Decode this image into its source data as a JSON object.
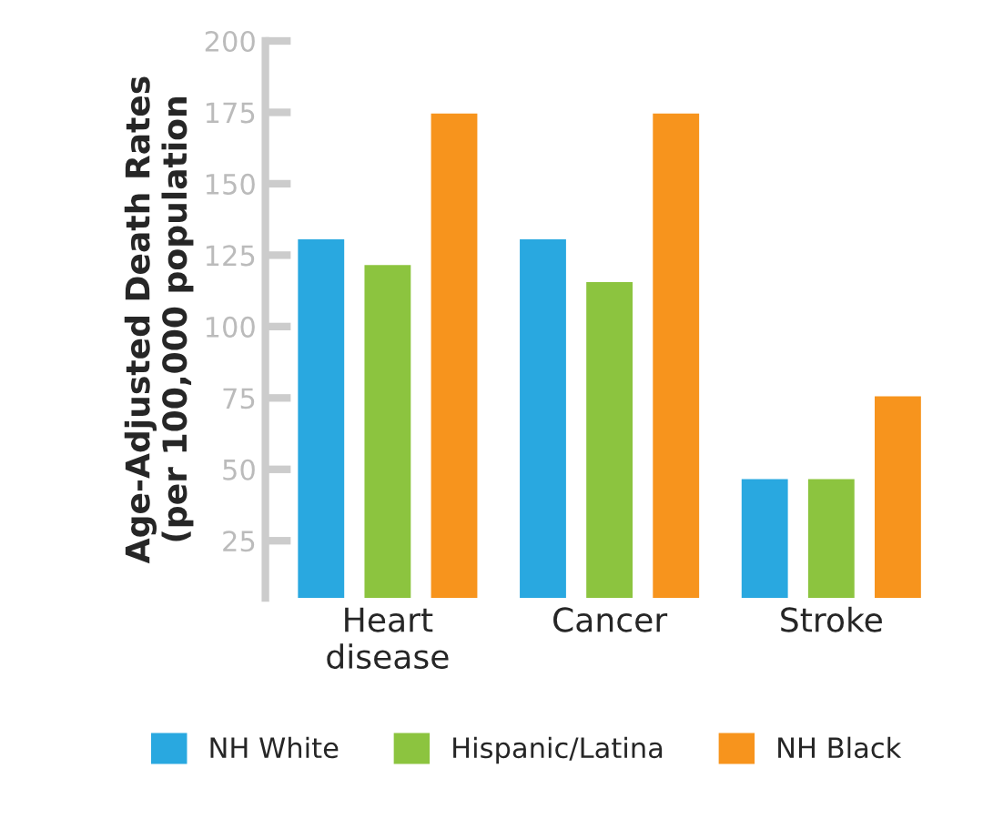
{
  "chart_data": {
    "type": "bar",
    "ylabel": "Age-Adjusted Death Rates\n(per 100,000 population",
    "categories": [
      "Heart\ndisease",
      "Cancer",
      "Stroke"
    ],
    "series": [
      {
        "name": "NH White",
        "color": "#29a8e0",
        "values": [
          131,
          131,
          47
        ]
      },
      {
        "name": "Hispanic/Latina",
        "color": "#8cc43f",
        "values": [
          122,
          116,
          47
        ]
      },
      {
        "name": "NH Black",
        "color": "#f7941d",
        "values": [
          175,
          175,
          76
        ]
      }
    ],
    "ylim": [
      5,
      200
    ],
    "yticks": [
      25,
      50,
      75,
      100,
      125,
      150,
      175,
      200
    ],
    "grid": false,
    "legend": "bottom"
  }
}
